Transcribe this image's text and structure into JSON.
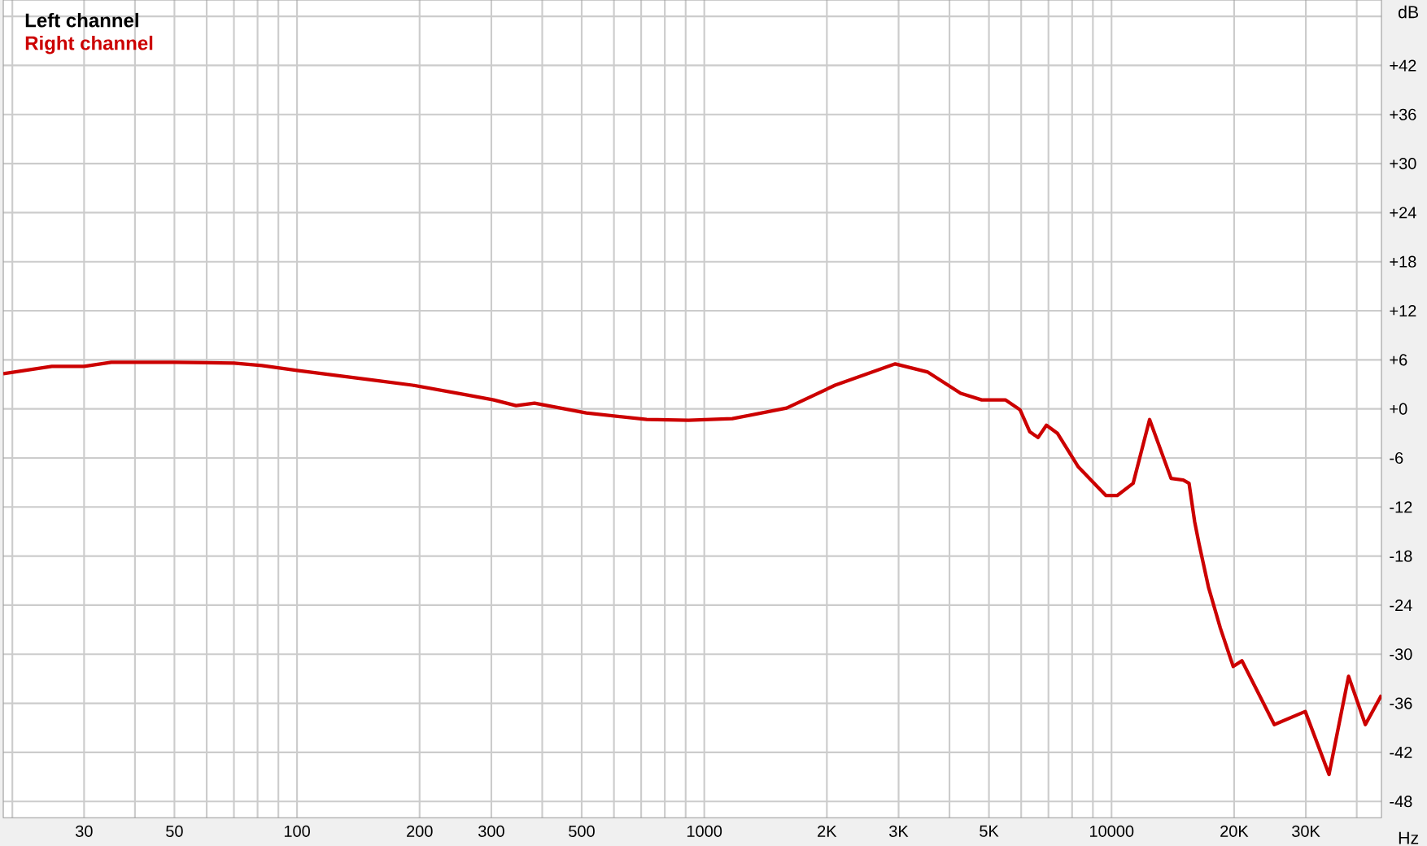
{
  "chart_data": {
    "type": "line",
    "xlabel": "Hz",
    "ylabel": "dB",
    "log": "x",
    "grid": true,
    "legend": "top left",
    "marker": "none",
    "line_style": "solid",
    "xlim": [
      19,
      46000
    ],
    "ylim": [
      -50,
      50
    ],
    "xticks": [
      {
        "value": 20,
        "label": null
      },
      30,
      {
        "value": 40,
        "label": null
      },
      50,
      {
        "value": 60,
        "label": null
      },
      {
        "value": 70,
        "label": null
      },
      {
        "value": 80,
        "label": null
      },
      {
        "value": 90,
        "label": null
      },
      100,
      200,
      300,
      {
        "value": 400,
        "label": null
      },
      500,
      {
        "value": 600,
        "label": null
      },
      {
        "value": 700,
        "label": null
      },
      {
        "value": 800,
        "label": null
      },
      {
        "value": 900,
        "label": null
      },
      1000,
      {
        "value": 2000,
        "label": "2K"
      },
      {
        "value": 3000,
        "label": "3K"
      },
      {
        "value": 4000,
        "label": null
      },
      {
        "value": 5000,
        "label": "5K"
      },
      {
        "value": 6000,
        "label": null
      },
      {
        "value": 7000,
        "label": null
      },
      {
        "value": 8000,
        "label": null
      },
      {
        "value": 9000,
        "label": null
      },
      10000,
      {
        "value": 20000,
        "label": "20K"
      },
      {
        "value": 30000,
        "label": "30K"
      },
      {
        "value": 40000,
        "label": null
      }
    ],
    "yticks": [
      {
        "value": -48,
        "label": "-48"
      },
      {
        "value": -42,
        "label": "-42"
      },
      {
        "value": -36,
        "label": "-36"
      },
      {
        "value": -30,
        "label": "-30"
      },
      {
        "value": -24,
        "label": "-24"
      },
      {
        "value": -18,
        "label": "-18"
      },
      {
        "value": -12,
        "label": "-12"
      },
      {
        "value": -6,
        "label": "-6"
      },
      {
        "value": 0,
        "label": "+0"
      },
      {
        "value": 6,
        "label": "+6"
      },
      {
        "value": 12,
        "label": "+12"
      },
      {
        "value": 18,
        "label": "+18"
      },
      {
        "value": 24,
        "label": "+24"
      },
      {
        "value": 30,
        "label": "+30"
      },
      {
        "value": 36,
        "label": "+36"
      },
      {
        "value": 42,
        "label": "+42"
      },
      {
        "value": 48,
        "label": null
      }
    ],
    "x": [
      19,
      25,
      30,
      35,
      50,
      70,
      82,
      100,
      160,
      192,
      262,
      304,
      345,
      383,
      513,
      722,
      915,
      1172,
      1593,
      2096,
      2944,
      3540,
      4262,
      4800,
      5485,
      5960,
      6300,
      6600,
      6920,
      7370,
      8290,
      9690,
      10320,
      11300,
      12400,
      14000,
      15000,
      15500,
      16000,
      16400,
      17300,
      18500,
      19900,
      20900,
      25100,
      29900,
      34200,
      38200,
      42000,
      46000
    ],
    "series": [
      {
        "name": "Left channel",
        "color": "#000000",
        "values": [
          null,
          null,
          null,
          null,
          null,
          null,
          null,
          null,
          null,
          null,
          null,
          null,
          null,
          null,
          null,
          null,
          null,
          null,
          null,
          null,
          null,
          null,
          null,
          null,
          null,
          null,
          null,
          null,
          null,
          null,
          null,
          null,
          null,
          null,
          null,
          null,
          null,
          null,
          null,
          null,
          null,
          null,
          null,
          null,
          null,
          null,
          null,
          null,
          null,
          null
        ]
      },
      {
        "name": "Right channel",
        "color": "#cc0000",
        "values": [
          4.3,
          5.2,
          5.2,
          5.7,
          5.7,
          5.6,
          5.3,
          4.7,
          3.4,
          2.9,
          1.7,
          1.1,
          0.4,
          0.7,
          -0.5,
          -1.3,
          -1.4,
          -1.2,
          0.1,
          2.9,
          5.5,
          4.5,
          1.9,
          1.1,
          1.1,
          -0.1,
          -2.8,
          -3.5,
          -2.0,
          -3.0,
          -7.1,
          -10.6,
          -10.6,
          -9.1,
          -1.3,
          -8.5,
          -8.7,
          -9.1,
          -13.8,
          -16.5,
          -21.8,
          -26.8,
          -31.5,
          -30.8,
          -38.6,
          -37.0,
          -44.7,
          -32.7,
          -38.6,
          -35.0
        ]
      }
    ]
  }
}
